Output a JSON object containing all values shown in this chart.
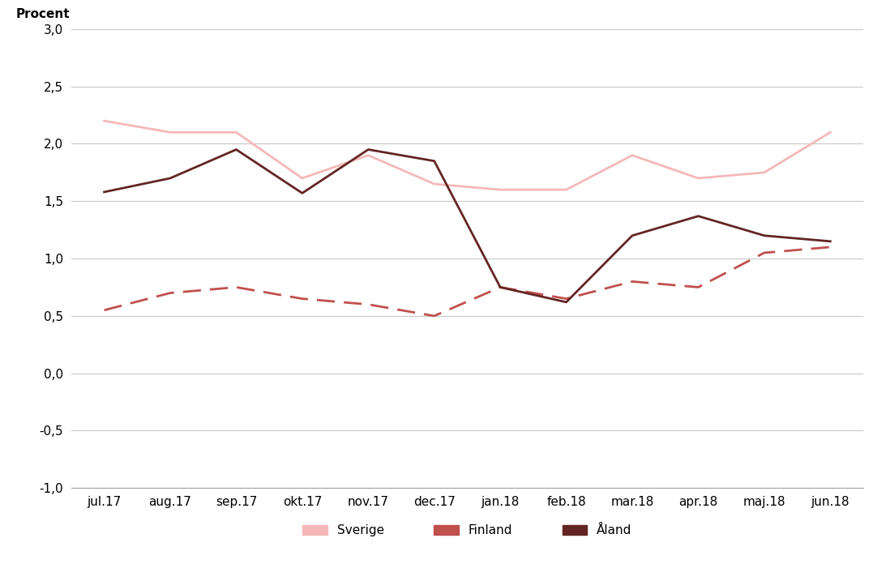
{
  "categories": [
    "jul.17",
    "aug.17",
    "sep.17",
    "okt.17",
    "nov.17",
    "dec.17",
    "jan.18",
    "feb.18",
    "mar.18",
    "apr.18",
    "maj.18",
    "jun.18"
  ],
  "sverige": [
    2.2,
    2.1,
    2.1,
    1.7,
    1.9,
    1.65,
    1.6,
    1.6,
    1.9,
    1.7,
    1.75,
    2.1
  ],
  "finland": [
    0.55,
    0.7,
    0.75,
    0.65,
    0.6,
    0.5,
    0.75,
    0.65,
    0.8,
    0.75,
    1.05,
    1.1
  ],
  "aland": [
    1.58,
    1.7,
    1.95,
    1.57,
    1.95,
    1.85,
    0.75,
    0.62,
    1.2,
    1.37,
    1.2,
    1.15
  ],
  "sverige_color": "#f4b8b8",
  "finland_color": "#c0504d",
  "aland_color": "#632523",
  "ylabel": "Procent",
  "ylim": [
    -1.0,
    3.0
  ],
  "yticks": [
    -1.0,
    -0.5,
    0.0,
    0.5,
    1.0,
    1.5,
    2.0,
    2.5,
    3.0
  ],
  "legend_labels": [
    "Sverige",
    "Finland",
    "Åland"
  ],
  "background_color": "#ffffff",
  "grid_color": "#c8c8c8"
}
